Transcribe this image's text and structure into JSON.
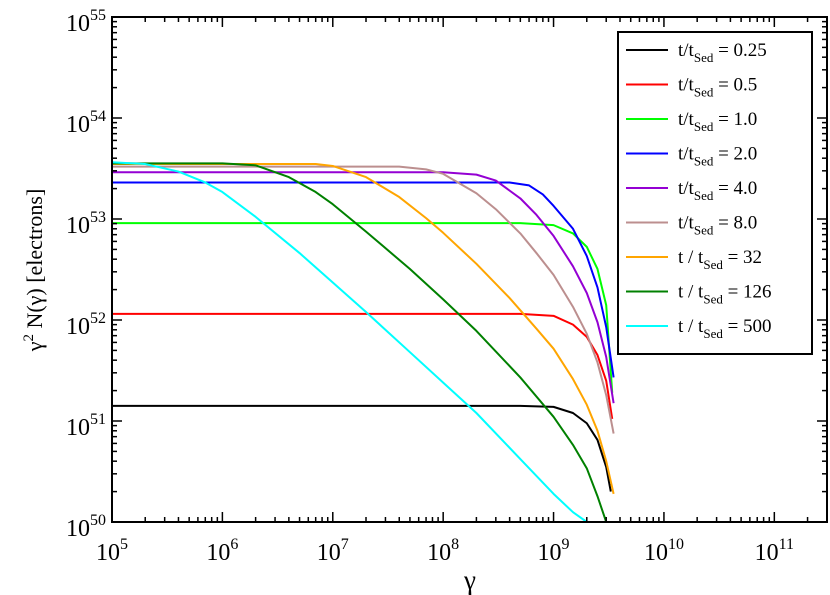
{
  "chart_data": {
    "type": "line",
    "title": "",
    "xlabel": "γ",
    "ylabel_main": "γ",
    "ylabel_sup": "2",
    "ylabel_rest": " N(γ) [electrons]",
    "xscale": "log",
    "yscale": "log",
    "xlim": [
      100000,
      300000000000
    ],
    "ylim": [
      1e+50,
      1e+55
    ],
    "x_ticks": [
      {
        "base": "10",
        "exp": "5",
        "value": 100000
      },
      {
        "base": "10",
        "exp": "6",
        "value": 1000000
      },
      {
        "base": "10",
        "exp": "7",
        "value": 10000000
      },
      {
        "base": "10",
        "exp": "8",
        "value": 100000000
      },
      {
        "base": "10",
        "exp": "9",
        "value": 1000000000
      },
      {
        "base": "10",
        "exp": "10",
        "value": 10000000000
      },
      {
        "base": "10",
        "exp": "11",
        "value": 100000000000
      }
    ],
    "y_ticks": [
      {
        "base": "10",
        "exp": "50",
        "value": 1e+50
      },
      {
        "base": "10",
        "exp": "51",
        "value": 1e+51
      },
      {
        "base": "10",
        "exp": "52",
        "value": 1e+52
      },
      {
        "base": "10",
        "exp": "53",
        "value": 1e+53
      },
      {
        "base": "10",
        "exp": "54",
        "value": 1e+54
      },
      {
        "base": "10",
        "exp": "55",
        "value": 1e+55
      }
    ],
    "grid": false,
    "legend_position": "top-right",
    "series": [
      {
        "legend_pre": "t/t",
        "legend_sub": "Sed",
        "legend_post": " = 0.25",
        "color": "#000000",
        "points": [
          [
            100000.0,
            1.41e+51
          ],
          [
            1000000.0,
            1.41e+51
          ],
          [
            10000000.0,
            1.41e+51
          ],
          [
            100000000.0,
            1.41e+51
          ],
          [
            500000000.0,
            1.41e+51
          ],
          [
            1000000000.0,
            1.38e+51
          ],
          [
            1500000000.0,
            1.2e+51
          ],
          [
            2000000000.0,
            9.5e+50
          ],
          [
            2500000000.0,
            6.5e+50
          ],
          [
            3000000000.0,
            3.5e+50
          ],
          [
            3300000000.0,
            2e+50
          ]
        ]
      },
      {
        "legend_pre": "t/t",
        "legend_sub": "Sed",
        "legend_post": " = 0.5",
        "color": "#ff0000",
        "points": [
          [
            100000.0,
            1.15e+52
          ],
          [
            1000000.0,
            1.15e+52
          ],
          [
            10000000.0,
            1.15e+52
          ],
          [
            100000000.0,
            1.15e+52
          ],
          [
            500000000.0,
            1.15e+52
          ],
          [
            1000000000.0,
            1.1e+52
          ],
          [
            1500000000.0,
            9e+51
          ],
          [
            2000000000.0,
            6.8e+51
          ],
          [
            2500000000.0,
            4.5e+51
          ],
          [
            3000000000.0,
            2.5e+51
          ],
          [
            3400000000.0,
            1.05e+51
          ]
        ]
      },
      {
        "legend_pre": "t/t",
        "legend_sub": "Sed",
        "legend_post": " = 1.0",
        "color": "#00ff00",
        "points": [
          [
            100000.0,
            9.1e+52
          ],
          [
            1000000.0,
            9.1e+52
          ],
          [
            10000000.0,
            9.1e+52
          ],
          [
            100000000.0,
            9.1e+52
          ],
          [
            500000000.0,
            9.1e+52
          ],
          [
            1000000000.0,
            8.7e+52
          ],
          [
            1500000000.0,
            7.2e+52
          ],
          [
            2000000000.0,
            5.3e+52
          ],
          [
            2500000000.0,
            3.2e+52
          ],
          [
            3000000000.0,
            1.4e+52
          ],
          [
            3400000000.0,
            1.9e+51
          ]
        ]
      },
      {
        "legend_pre": "t/t",
        "legend_sub": "Sed",
        "legend_post": " = 2.0",
        "color": "#0000ff",
        "points": [
          [
            100000.0,
            2.3e+53
          ],
          [
            1000000.0,
            2.3e+53
          ],
          [
            10000000.0,
            2.3e+53
          ],
          [
            100000000.0,
            2.3e+53
          ],
          [
            400000000.0,
            2.3e+53
          ],
          [
            600000000.0,
            2.15e+53
          ],
          [
            800000000.0,
            1.75e+53
          ],
          [
            1000000000.0,
            1.35e+53
          ],
          [
            1500000000.0,
            8e+52
          ],
          [
            2000000000.0,
            4.3e+52
          ],
          [
            2500000000.0,
            2.1e+52
          ],
          [
            3000000000.0,
            8.5e+51
          ],
          [
            3500000000.0,
            2.7e+51
          ]
        ]
      },
      {
        "legend_pre": "t/t",
        "legend_sub": "Sed",
        "legend_post": " = 4.0",
        "color": "#9400d3",
        "points": [
          [
            100000.0,
            2.9e+53
          ],
          [
            1000000.0,
            2.9e+53
          ],
          [
            10000000.0,
            2.9e+53
          ],
          [
            100000000.0,
            2.9e+53
          ],
          [
            200000000.0,
            2.75e+53
          ],
          [
            300000000.0,
            2.4e+53
          ],
          [
            500000000.0,
            1.6e+53
          ],
          [
            700000000.0,
            1.1e+53
          ],
          [
            1000000000.0,
            6.8e+52
          ],
          [
            1500000000.0,
            3.4e+52
          ],
          [
            2000000000.0,
            1.85e+52
          ],
          [
            2500000000.0,
            9.5e+51
          ],
          [
            3000000000.0,
            4.3e+51
          ],
          [
            3500000000.0,
            1.5e+51
          ]
        ]
      },
      {
        "legend_pre": "t/t",
        "legend_sub": "Sed",
        "legend_post": " = 8.0",
        "color": "#bc8f8f",
        "points": [
          [
            100000.0,
            3.3e+53
          ],
          [
            1000000.0,
            3.3e+53
          ],
          [
            10000000.0,
            3.3e+53
          ],
          [
            40000000.0,
            3.3e+53
          ],
          [
            70000000.0,
            3.1e+53
          ],
          [
            100000000.0,
            2.8e+53
          ],
          [
            200000000.0,
            1.8e+53
          ],
          [
            300000000.0,
            1.25e+53
          ],
          [
            500000000.0,
            7.2e+52
          ],
          [
            700000000.0,
            4.6e+52
          ],
          [
            1000000000.0,
            2.8e+52
          ],
          [
            1500000000.0,
            1.35e+52
          ],
          [
            2000000000.0,
            7.3e+51
          ],
          [
            2500000000.0,
            3.8e+51
          ],
          [
            3000000000.0,
            1.8e+51
          ],
          [
            3500000000.0,
            7.5e+50
          ]
        ]
      },
      {
        "legend_pre": "t / t",
        "legend_sub": "Sed",
        "legend_post": " = 32",
        "color": "#ffa500",
        "points": [
          [
            100000.0,
            3.5e+53
          ],
          [
            1000000.0,
            3.5e+53
          ],
          [
            7000000.0,
            3.5e+53
          ],
          [
            10000000.0,
            3.35e+53
          ],
          [
            20000000.0,
            2.6e+53
          ],
          [
            40000000.0,
            1.65e+53
          ],
          [
            70000000.0,
            1.02e+53
          ],
          [
            100000000.0,
            7.3e+52
          ],
          [
            200000000.0,
            3.6e+52
          ],
          [
            400000000.0,
            1.65e+52
          ],
          [
            700000000.0,
            8.2e+51
          ],
          [
            1000000000.0,
            5.2e+51
          ],
          [
            1500000000.0,
            2.6e+51
          ],
          [
            2000000000.0,
            1.45e+51
          ],
          [
            2500000000.0,
            8e+50
          ],
          [
            3000000000.0,
            4e+50
          ],
          [
            3500000000.0,
            1.9e+50
          ]
        ]
      },
      {
        "legend_pre": "t / t",
        "legend_sub": "Sed",
        "legend_post": " = 126",
        "color": "#008000",
        "points": [
          [
            100000.0,
            3.55e+53
          ],
          [
            1000000.0,
            3.55e+53
          ],
          [
            2000000.0,
            3.4e+53
          ],
          [
            4000000.0,
            2.6e+53
          ],
          [
            7000000.0,
            1.85e+53
          ],
          [
            10000000.0,
            1.4e+53
          ],
          [
            20000000.0,
            7.5e+52
          ],
          [
            50000000.0,
            3.2e+52
          ],
          [
            100000000.0,
            1.6e+52
          ],
          [
            200000000.0,
            7.8e+51
          ],
          [
            500000000.0,
            2.7e+51
          ],
          [
            1000000000.0,
            1.1e+51
          ],
          [
            1500000000.0,
            5.8e+50
          ],
          [
            2000000000.0,
            3.4e+50
          ],
          [
            2500000000.0,
            1.8e+50
          ],
          [
            3000000000.0,
            1e+50
          ]
        ]
      },
      {
        "legend_pre": "t / t",
        "legend_sub": "Sed",
        "legend_post": " = 500",
        "color": "#00ffff",
        "points": [
          [
            100000.0,
            3.65e+53
          ],
          [
            200000.0,
            3.5e+53
          ],
          [
            400000.0,
            2.95e+53
          ],
          [
            700000.0,
            2.3e+53
          ],
          [
            1000000.0,
            1.85e+53
          ],
          [
            2000000.0,
            1.05e+53
          ],
          [
            5000000.0,
            4.6e+52
          ],
          [
            10000000.0,
            2.35e+52
          ],
          [
            20000000.0,
            1.2e+52
          ],
          [
            50000000.0,
            4.8e+51
          ],
          [
            100000000.0,
            2.4e+51
          ],
          [
            200000000.0,
            1.2e+51
          ],
          [
            500000000.0,
            4.2e+50
          ],
          [
            1000000000.0,
            1.9e+50
          ],
          [
            1500000000.0,
            1.25e+50
          ],
          [
            2000000000.0,
            1e+50
          ]
        ]
      }
    ]
  }
}
